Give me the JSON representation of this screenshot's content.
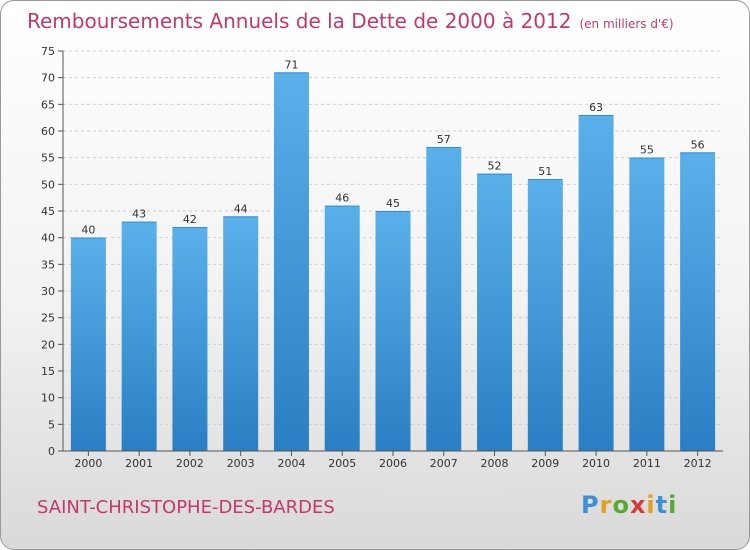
{
  "header": {
    "title": "Remboursements Annuels de la Dette de 2000 à 2012",
    "unit": "(en milliers d'€)"
  },
  "footer": {
    "commune": "SAINT-CHRISTOPHE-DES-BARDES",
    "logo": [
      "P",
      "r",
      "o",
      "x",
      "i",
      "t",
      "i"
    ]
  },
  "colors": {
    "title": "#c4386a",
    "bar_top": "#5ab0ea",
    "bar_bottom": "#2a7fc4",
    "grid": "#cfcfcf",
    "axis": "#555555"
  },
  "chart_data": {
    "type": "bar",
    "title": "Remboursements Annuels de la Dette de 2000 à 2012",
    "subtitle": "(en milliers d'€)",
    "categories": [
      "2000",
      "2001",
      "2002",
      "2003",
      "2004",
      "2005",
      "2006",
      "2007",
      "2008",
      "2009",
      "2010",
      "2011",
      "2012"
    ],
    "values": [
      40,
      43,
      42,
      44,
      71,
      46,
      45,
      57,
      52,
      51,
      63,
      55,
      56
    ],
    "ylim": [
      0,
      75
    ],
    "yticks": [
      0,
      5,
      10,
      15,
      20,
      25,
      30,
      35,
      40,
      45,
      50,
      55,
      60,
      65,
      70,
      75
    ],
    "data_labels": true,
    "grid": "horizontal dashed",
    "xlabel": "",
    "ylabel": ""
  }
}
